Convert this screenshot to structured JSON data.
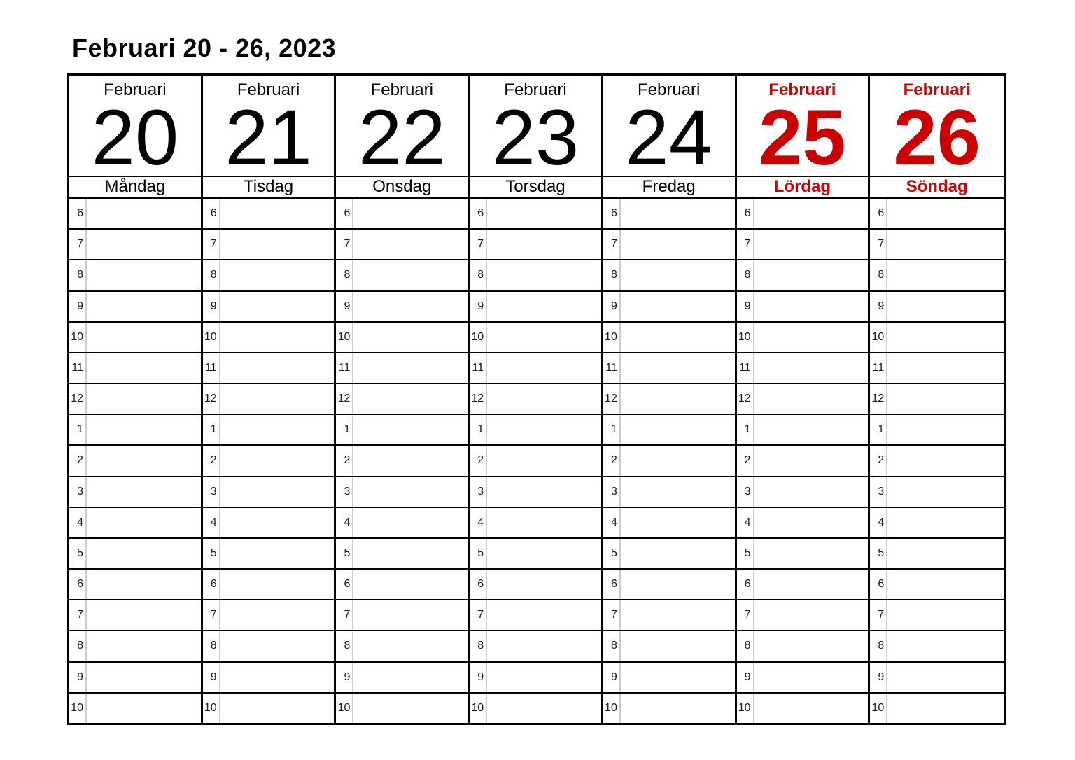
{
  "title": "Februari 20 - 26, 2023",
  "colors": {
    "weekend_red": "#cc0000",
    "grid_line_black": "#000000",
    "hour_divider_gray": "#cccccc"
  },
  "days": [
    {
      "month": "Februari",
      "date": "20",
      "weekday": "Måndag",
      "weekend": false
    },
    {
      "month": "Februari",
      "date": "21",
      "weekday": "Tisdag",
      "weekend": false
    },
    {
      "month": "Februari",
      "date": "22",
      "weekday": "Onsdag",
      "weekend": false
    },
    {
      "month": "Februari",
      "date": "23",
      "weekday": "Torsdag",
      "weekend": false
    },
    {
      "month": "Februari",
      "date": "24",
      "weekday": "Fredag",
      "weekend": false
    },
    {
      "month": "Februari",
      "date": "25",
      "weekday": "Lördag",
      "weekend": true
    },
    {
      "month": "Februari",
      "date": "26",
      "weekday": "Söndag",
      "weekend": true
    }
  ],
  "hour_labels": [
    "6",
    "7",
    "8",
    "9",
    "10",
    "11",
    "12",
    "1",
    "2",
    "3",
    "4",
    "5",
    "6",
    "7",
    "8",
    "9",
    "10"
  ]
}
